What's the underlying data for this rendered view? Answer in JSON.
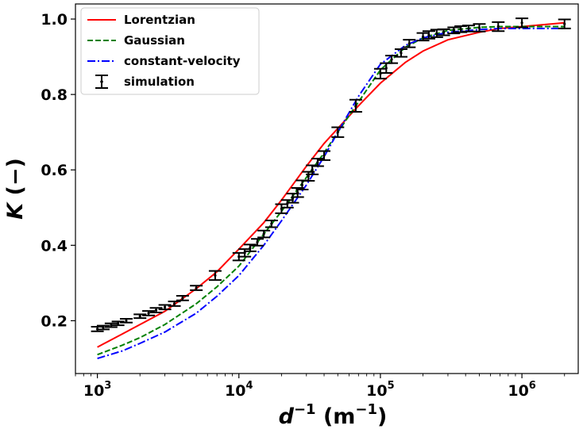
{
  "chart_data": {
    "type": "line",
    "x_scale": "log",
    "xlabel": {
      "base": "d",
      "base_sup": "−1",
      "unit": " (m",
      "unit_sup": "−1",
      "close": ")"
    },
    "ylabel": {
      "italic": "K",
      "rest": " (−)"
    },
    "xlim": [
      700,
      2500000
    ],
    "ylim": [
      0.06,
      1.04
    ],
    "y_ticks": [
      0.2,
      0.4,
      0.6,
      0.8,
      1.0
    ],
    "y_tick_labels": [
      "0.2",
      "0.4",
      "0.6",
      "0.8",
      "1.0"
    ],
    "x_ticks": [
      1000,
      10000,
      100000,
      1000000
    ],
    "x_tick_labels": [
      {
        "base": "10",
        "exp": "3"
      },
      {
        "base": "10",
        "exp": "4"
      },
      {
        "base": "10",
        "exp": "5"
      },
      {
        "base": "10",
        "exp": "6"
      }
    ],
    "grid": false,
    "legend_position": "top-left",
    "series": [
      {
        "name": "Lorentzian",
        "color": "#ff0000",
        "style": "solid",
        "x": [
          1000,
          1500,
          2000,
          3000,
          5000,
          7000,
          10000,
          15000,
          20000,
          30000,
          40000,
          50000,
          70000,
          100000,
          150000,
          200000,
          300000,
          500000,
          700000,
          1000000,
          2000000
        ],
        "y": [
          0.13,
          0.165,
          0.19,
          0.225,
          0.285,
          0.33,
          0.39,
          0.46,
          0.52,
          0.61,
          0.67,
          0.71,
          0.77,
          0.83,
          0.885,
          0.915,
          0.945,
          0.965,
          0.975,
          0.98,
          0.99
        ]
      },
      {
        "name": "Gaussian",
        "color": "#008000",
        "style": "dashed",
        "x": [
          1000,
          1500,
          2000,
          3000,
          5000,
          7000,
          10000,
          15000,
          20000,
          30000,
          40000,
          50000,
          70000,
          100000,
          150000,
          200000,
          300000,
          500000,
          700000,
          1000000,
          2000000
        ],
        "y": [
          0.11,
          0.135,
          0.155,
          0.19,
          0.245,
          0.29,
          0.345,
          0.43,
          0.49,
          0.58,
          0.645,
          0.7,
          0.78,
          0.865,
          0.925,
          0.95,
          0.97,
          0.978,
          0.98,
          0.98,
          0.98
        ]
      },
      {
        "name": "constant-velocity",
        "color": "#0000ff",
        "style": "dashdot",
        "x": [
          1000,
          1500,
          2000,
          3000,
          5000,
          7000,
          10000,
          15000,
          20000,
          30000,
          40000,
          50000,
          70000,
          100000,
          150000,
          200000,
          300000,
          500000,
          700000,
          1000000,
          2000000
        ],
        "y": [
          0.1,
          0.12,
          0.14,
          0.17,
          0.22,
          0.265,
          0.32,
          0.4,
          0.465,
          0.56,
          0.635,
          0.7,
          0.795,
          0.88,
          0.93,
          0.95,
          0.965,
          0.972,
          0.975,
          0.975,
          0.975
        ]
      },
      {
        "name": "simulation",
        "color": "#000000",
        "style": "errorbar",
        "x": [
          1000,
          1100,
          1250,
          1400,
          1600,
          2000,
          2300,
          2600,
          3000,
          3500,
          4000,
          5000,
          6800,
          10000,
          11000,
          12000,
          13500,
          15000,
          17000,
          20000,
          22000,
          24000,
          26000,
          28000,
          31000,
          33000,
          36000,
          40000,
          50000,
          67000,
          100000,
          110000,
          120000,
          140000,
          160000,
          200000,
          220000,
          250000,
          280000,
          330000,
          370000,
          420000,
          500000,
          680000,
          1000000,
          2000000
        ],
        "y": [
          0.178,
          0.182,
          0.188,
          0.193,
          0.2,
          0.212,
          0.22,
          0.228,
          0.236,
          0.245,
          0.26,
          0.287,
          0.32,
          0.37,
          0.38,
          0.393,
          0.408,
          0.43,
          0.457,
          0.497,
          0.51,
          0.525,
          0.54,
          0.56,
          0.583,
          0.6,
          0.62,
          0.638,
          0.7,
          0.77,
          0.855,
          0.87,
          0.893,
          0.91,
          0.935,
          0.953,
          0.958,
          0.962,
          0.965,
          0.97,
          0.973,
          0.975,
          0.977,
          0.98,
          0.99,
          0.987
        ],
        "err": [
          0.006,
          0.005,
          0.005,
          0.005,
          0.005,
          0.005,
          0.006,
          0.006,
          0.006,
          0.006,
          0.006,
          0.006,
          0.012,
          0.01,
          0.01,
          0.009,
          0.009,
          0.009,
          0.009,
          0.012,
          0.01,
          0.012,
          0.012,
          0.012,
          0.012,
          0.012,
          0.01,
          0.012,
          0.013,
          0.016,
          0.013,
          0.013,
          0.01,
          0.01,
          0.01,
          0.01,
          0.01,
          0.01,
          0.008,
          0.008,
          0.008,
          0.008,
          0.01,
          0.012,
          0.012,
          0.012
        ]
      }
    ]
  }
}
